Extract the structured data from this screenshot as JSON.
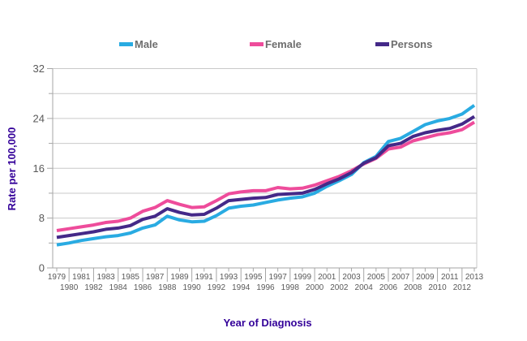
{
  "legend": {
    "items": [
      {
        "label": "Male",
        "x": 147
      },
      {
        "label": "Female",
        "x": 308
      },
      {
        "label": "Persons",
        "x": 463
      }
    ]
  },
  "chart_data": {
    "type": "line",
    "title": "",
    "xlabel": "Year of Diagnosis",
    "ylabel": "Rate per 100,000",
    "x": [
      1979,
      1980,
      1981,
      1982,
      1983,
      1984,
      1985,
      1986,
      1987,
      1988,
      1989,
      1990,
      1991,
      1992,
      1993,
      1994,
      1995,
      1996,
      1997,
      1998,
      1999,
      2000,
      2001,
      2002,
      2003,
      2004,
      2005,
      2006,
      2007,
      2008,
      2009,
      2010,
      2011,
      2012,
      2013
    ],
    "series": [
      {
        "name": "Male",
        "color": "#29ABE2",
        "values": [
          3.7,
          4.0,
          4.4,
          4.7,
          5.0,
          5.2,
          5.6,
          6.4,
          6.9,
          8.3,
          7.7,
          7.4,
          7.5,
          8.4,
          9.6,
          9.9,
          10.1,
          10.5,
          10.9,
          11.2,
          11.4,
          12.0,
          13.1,
          14.0,
          15.0,
          16.9,
          17.9,
          20.3,
          20.8,
          21.9,
          23.0,
          23.6,
          24.0,
          24.7,
          26.1
        ]
      },
      {
        "name": "Female",
        "color": "#EE4C9B",
        "values": [
          6.0,
          6.3,
          6.6,
          6.9,
          7.3,
          7.5,
          8.0,
          9.1,
          9.7,
          10.8,
          10.2,
          9.7,
          9.8,
          10.8,
          11.9,
          12.2,
          12.4,
          12.4,
          12.9,
          12.7,
          12.8,
          13.3,
          14.0,
          14.7,
          15.6,
          16.7,
          17.6,
          19.1,
          19.4,
          20.4,
          20.9,
          21.4,
          21.7,
          22.2,
          23.4
        ]
      },
      {
        "name": "Persons",
        "color": "#442988",
        "values": [
          4.9,
          5.2,
          5.5,
          5.8,
          6.2,
          6.4,
          6.8,
          7.8,
          8.3,
          9.5,
          8.9,
          8.5,
          8.6,
          9.6,
          10.8,
          11.0,
          11.2,
          11.3,
          11.8,
          11.9,
          12.0,
          12.6,
          13.5,
          14.3,
          15.3,
          16.8,
          17.7,
          19.6,
          20.0,
          21.1,
          21.7,
          22.1,
          22.4,
          23.1,
          24.3
        ]
      }
    ],
    "ylim": [
      0,
      32
    ],
    "y_major_ticks": [
      0,
      8,
      16,
      24,
      32
    ],
    "y_minor_step": 4,
    "grid": true,
    "legend_position": "top",
    "x_label_style": "staggered"
  },
  "colors": {
    "background": "#FFFFFF",
    "axis_title": "#330099",
    "tick_label": "#595959",
    "legend_text": "#6E6E6E",
    "gridline": "#C9C9C9",
    "axis_line": "#A6A6A6"
  }
}
